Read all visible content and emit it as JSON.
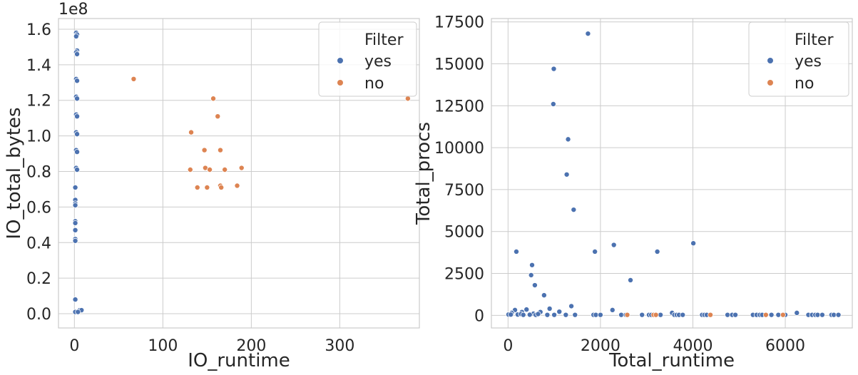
{
  "chart_data": [
    {
      "type": "scatter",
      "xlabel": "IO_runtime",
      "ylabel": "IO_total_bytes",
      "y_offset_label": "1e8",
      "xlim": [
        -18,
        390
      ],
      "ylim": [
        -0.08,
        1.66
      ],
      "x_ticks": [
        0,
        100,
        200,
        300
      ],
      "y_ticks": [
        0.0,
        0.2,
        0.4,
        0.6,
        0.8,
        1.0,
        1.2,
        1.4,
        1.6
      ],
      "grid": true,
      "legend": {
        "title": "Filter",
        "placement": "top-right"
      },
      "series": [
        {
          "name": "yes",
          "color": "#4c72b0",
          "points": [
            [
              2,
              1.58
            ],
            [
              3,
              1.57
            ],
            [
              2,
              1.56
            ],
            [
              3,
              1.48
            ],
            [
              2,
              1.47
            ],
            [
              3,
              1.46
            ],
            [
              2,
              1.32
            ],
            [
              3,
              1.31
            ],
            [
              2,
              1.22
            ],
            [
              3,
              1.21
            ],
            [
              2,
              1.12
            ],
            [
              3,
              1.11
            ],
            [
              2,
              1.02
            ],
            [
              3,
              1.01
            ],
            [
              2,
              0.92
            ],
            [
              3,
              0.91
            ],
            [
              2,
              0.82
            ],
            [
              3,
              0.81
            ],
            [
              1,
              0.71
            ],
            [
              1,
              0.64
            ],
            [
              1,
              0.62
            ],
            [
              1,
              0.61
            ],
            [
              1,
              0.52
            ],
            [
              1,
              0.51
            ],
            [
              1,
              0.47
            ],
            [
              1,
              0.42
            ],
            [
              1,
              0.41
            ],
            [
              1,
              0.08
            ],
            [
              1,
              0.01
            ],
            [
              6,
              0.02
            ],
            [
              8,
              0.02
            ],
            [
              4,
              0.01
            ]
          ]
        },
        {
          "name": "no",
          "color": "#dd8452",
          "points": [
            [
              67,
              1.32
            ],
            [
              157,
              1.21
            ],
            [
              377,
              1.21
            ],
            [
              162,
              1.11
            ],
            [
              132,
              1.02
            ],
            [
              147,
              0.92
            ],
            [
              165,
              0.92
            ],
            [
              131,
              0.81
            ],
            [
              148,
              0.82
            ],
            [
              153,
              0.81
            ],
            [
              170,
              0.81
            ],
            [
              189,
              0.82
            ],
            [
              139,
              0.71
            ],
            [
              150,
              0.71
            ],
            [
              165,
              0.72
            ],
            [
              166,
              0.71
            ],
            [
              184,
              0.72
            ]
          ]
        }
      ]
    },
    {
      "type": "scatter",
      "xlabel": "Total_runtime",
      "ylabel": "Total_procs",
      "xlim": [
        -360,
        7450
      ],
      "ylim": [
        -750,
        17700
      ],
      "x_ticks": [
        0,
        2000,
        4000,
        6000
      ],
      "y_ticks": [
        0,
        2500,
        5000,
        7500,
        10000,
        12500,
        15000,
        17500
      ],
      "grid": true,
      "legend": {
        "title": "Filter",
        "placement": "top-right"
      },
      "series": [
        {
          "name": "yes",
          "color": "#4c72b0",
          "points": [
            [
              1730,
              16800
            ],
            [
              990,
              14700
            ],
            [
              980,
              12600
            ],
            [
              1300,
              10500
            ],
            [
              1270,
              8400
            ],
            [
              1420,
              6300
            ],
            [
              4010,
              4300
            ],
            [
              2290,
              4200
            ],
            [
              180,
              3800
            ],
            [
              1880,
              3800
            ],
            [
              3230,
              3800
            ],
            [
              520,
              3000
            ],
            [
              500,
              2400
            ],
            [
              2650,
              2100
            ],
            [
              580,
              1800
            ],
            [
              780,
              1200
            ],
            [
              1370,
              550
            ],
            [
              900,
              400
            ],
            [
              400,
              350
            ],
            [
              150,
              320
            ],
            [
              2260,
              320
            ],
            [
              1110,
              220
            ],
            [
              700,
              200
            ],
            [
              300,
              200
            ],
            [
              80,
              150
            ],
            [
              3550,
              150
            ],
            [
              6250,
              150
            ],
            [
              550,
              100
            ],
            [
              10,
              50
            ],
            [
              60,
              50
            ],
            [
              210,
              50
            ],
            [
              280,
              80
            ],
            [
              330,
              30
            ],
            [
              470,
              40
            ],
            [
              600,
              30
            ],
            [
              650,
              80
            ],
            [
              850,
              30
            ],
            [
              1000,
              30
            ],
            [
              1250,
              30
            ],
            [
              1450,
              30
            ],
            [
              1850,
              30
            ],
            [
              1900,
              30
            ],
            [
              2000,
              30
            ],
            [
              2450,
              30
            ],
            [
              2550,
              30
            ],
            [
              2900,
              30
            ],
            [
              3050,
              30
            ],
            [
              3100,
              30
            ],
            [
              3300,
              30
            ],
            [
              3600,
              30
            ],
            [
              3650,
              30
            ],
            [
              3700,
              30
            ],
            [
              3780,
              30
            ],
            [
              4200,
              30
            ],
            [
              4250,
              30
            ],
            [
              4300,
              30
            ],
            [
              4750,
              30
            ],
            [
              4850,
              30
            ],
            [
              4920,
              30
            ],
            [
              5300,
              30
            ],
            [
              5380,
              30
            ],
            [
              5450,
              30
            ],
            [
              5500,
              30
            ],
            [
              5700,
              30
            ],
            [
              5850,
              30
            ],
            [
              5950,
              30
            ],
            [
              6000,
              30
            ],
            [
              6500,
              30
            ],
            [
              6580,
              30
            ],
            [
              6650,
              30
            ],
            [
              6700,
              30
            ],
            [
              6800,
              30
            ],
            [
              7000,
              30
            ],
            [
              7050,
              30
            ],
            [
              7150,
              30
            ]
          ]
        },
        {
          "name": "no",
          "color": "#dd8452",
          "points": [
            [
              2580,
              30
            ],
            [
              3150,
              30
            ],
            [
              3200,
              30
            ],
            [
              4380,
              30
            ],
            [
              5580,
              30
            ],
            [
              5950,
              30
            ]
          ]
        }
      ]
    }
  ]
}
